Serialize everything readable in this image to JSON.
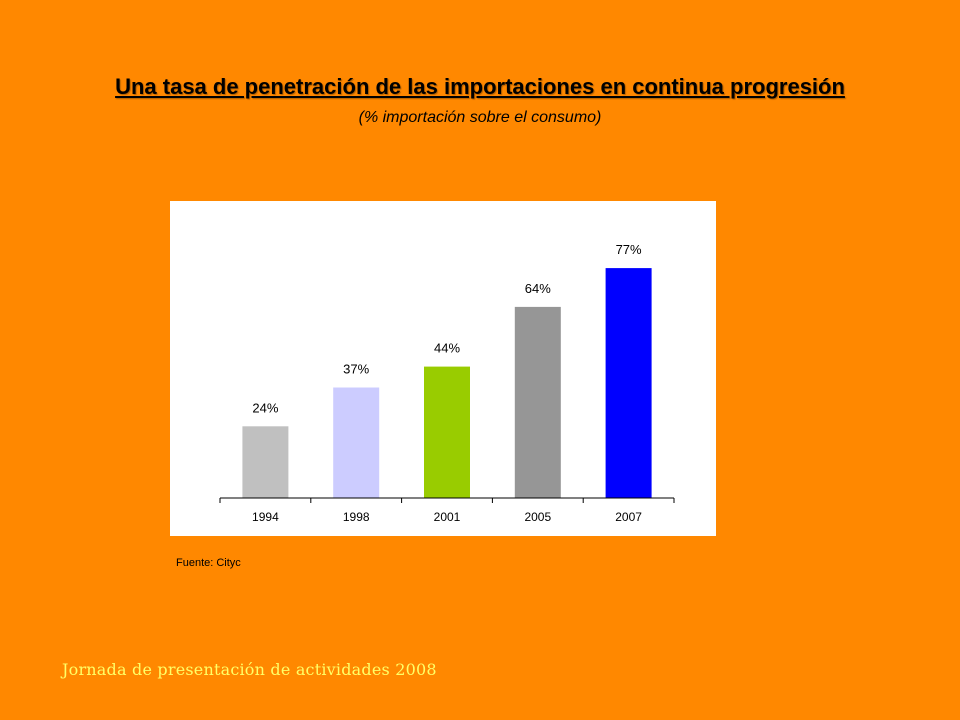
{
  "header": {
    "title": "Una tasa de penetración de las importaciones en continua progresión",
    "subtitle": "(% importación sobre el consumo)"
  },
  "chart_data": {
    "type": "bar",
    "categories": [
      "1994",
      "1998",
      "2001",
      "2005",
      "2007"
    ],
    "values": [
      24,
      37,
      44,
      64,
      77
    ],
    "data_labels": [
      "24%",
      "37%",
      "44%",
      "64%",
      "77%"
    ],
    "bar_colors": [
      "#C0C0C0",
      "#CCCCFF",
      "#99CC00",
      "#969696",
      "#0000FF"
    ],
    "title": "",
    "xlabel": "",
    "ylabel": "",
    "ylim": [
      0,
      100
    ],
    "grid": false,
    "legend": "none"
  },
  "source": {
    "text": "Fuente: Cityc"
  },
  "footer": {
    "text": "Jornada de presentación de actividades 2008"
  },
  "colors": {
    "background": "#FF8800",
    "chart_background": "#FFFFFF",
    "footer_text": "#FFFF66"
  }
}
